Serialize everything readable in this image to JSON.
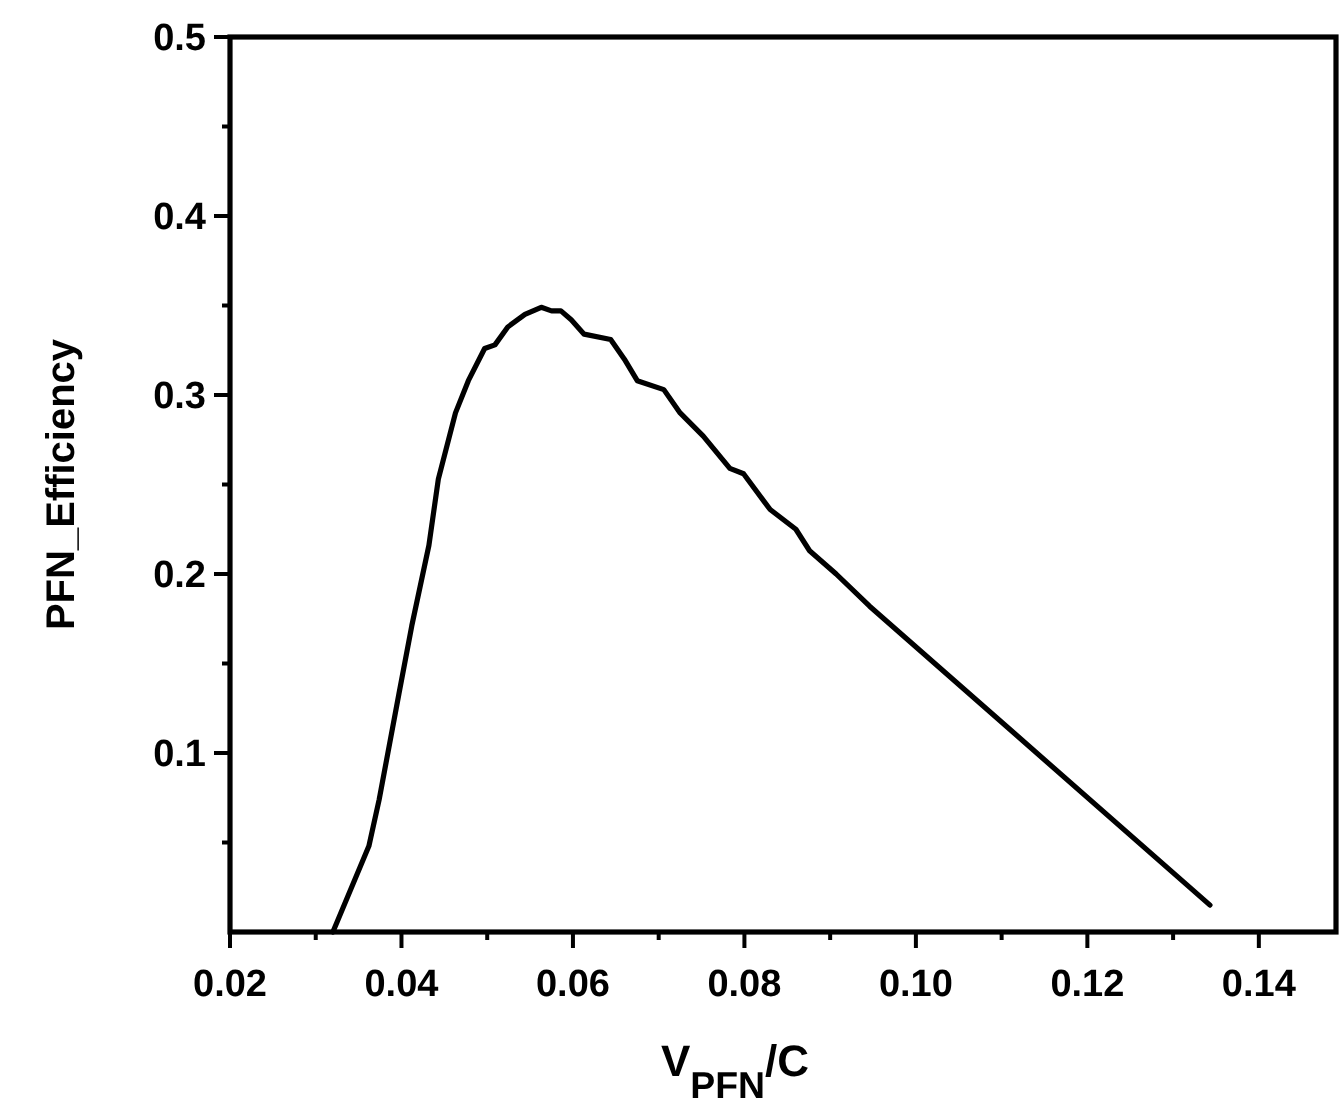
{
  "chart_data": {
    "type": "line",
    "xlabel": "V$_{PFN}$/C",
    "ylabel": "PFN_Efficiency",
    "xlim": [
      0.02,
      0.149
    ],
    "ylim": [
      0,
      0.5
    ],
    "xticks": [
      0.02,
      {
        "value": 0.03,
        "label": null
      },
      0.04,
      {
        "value": 0.05,
        "label": null
      },
      0.06,
      {
        "value": 0.07,
        "label": null
      },
      0.08,
      {
        "value": 0.09,
        "label": null
      },
      {
        "value": 0.1,
        "label": "0.10"
      },
      {
        "value": 0.11,
        "label": null
      },
      0.12,
      {
        "value": 0.13,
        "label": null
      },
      0.14
    ],
    "yticks": [
      {
        "value": 0.05,
        "label": null
      },
      0.1,
      {
        "value": 0.15,
        "label": null
      },
      0.2,
      {
        "value": 0.25,
        "label": null
      },
      0.3,
      {
        "value": 0.35,
        "label": null
      },
      0.4,
      {
        "value": 0.45,
        "label": null
      },
      0.5
    ],
    "grid": false,
    "marker": "none",
    "line_style": "solid",
    "series": [
      {
        "color": "#000000",
        "x": [
          0.032,
          0.0362,
          0.0374,
          0.0397,
          0.0412,
          0.0432,
          0.0443,
          0.0463,
          0.0478,
          0.0497,
          0.0509,
          0.0524,
          0.0544,
          0.0563,
          0.0575,
          0.0586,
          0.0598,
          0.0613,
          0.0644,
          0.066,
          0.0675,
          0.0706,
          0.0725,
          0.0752,
          0.0783,
          0.0799,
          0.083,
          0.086,
          0.0876,
          0.0907,
          0.0946,
          0.1343
        ],
        "values": [
          0,
          0.048,
          0.074,
          0.133,
          0.171,
          0.216,
          0.253,
          0.29,
          0.308,
          0.326,
          0.328,
          0.338,
          0.345,
          0.349,
          0.347,
          0.347,
          0.342,
          0.334,
          0.331,
          0.32,
          0.308,
          0.303,
          0.29,
          0.277,
          0.259,
          0.256,
          0.236,
          0.225,
          0.213,
          0.2,
          0.182,
          0.015
        ]
      }
    ]
  }
}
